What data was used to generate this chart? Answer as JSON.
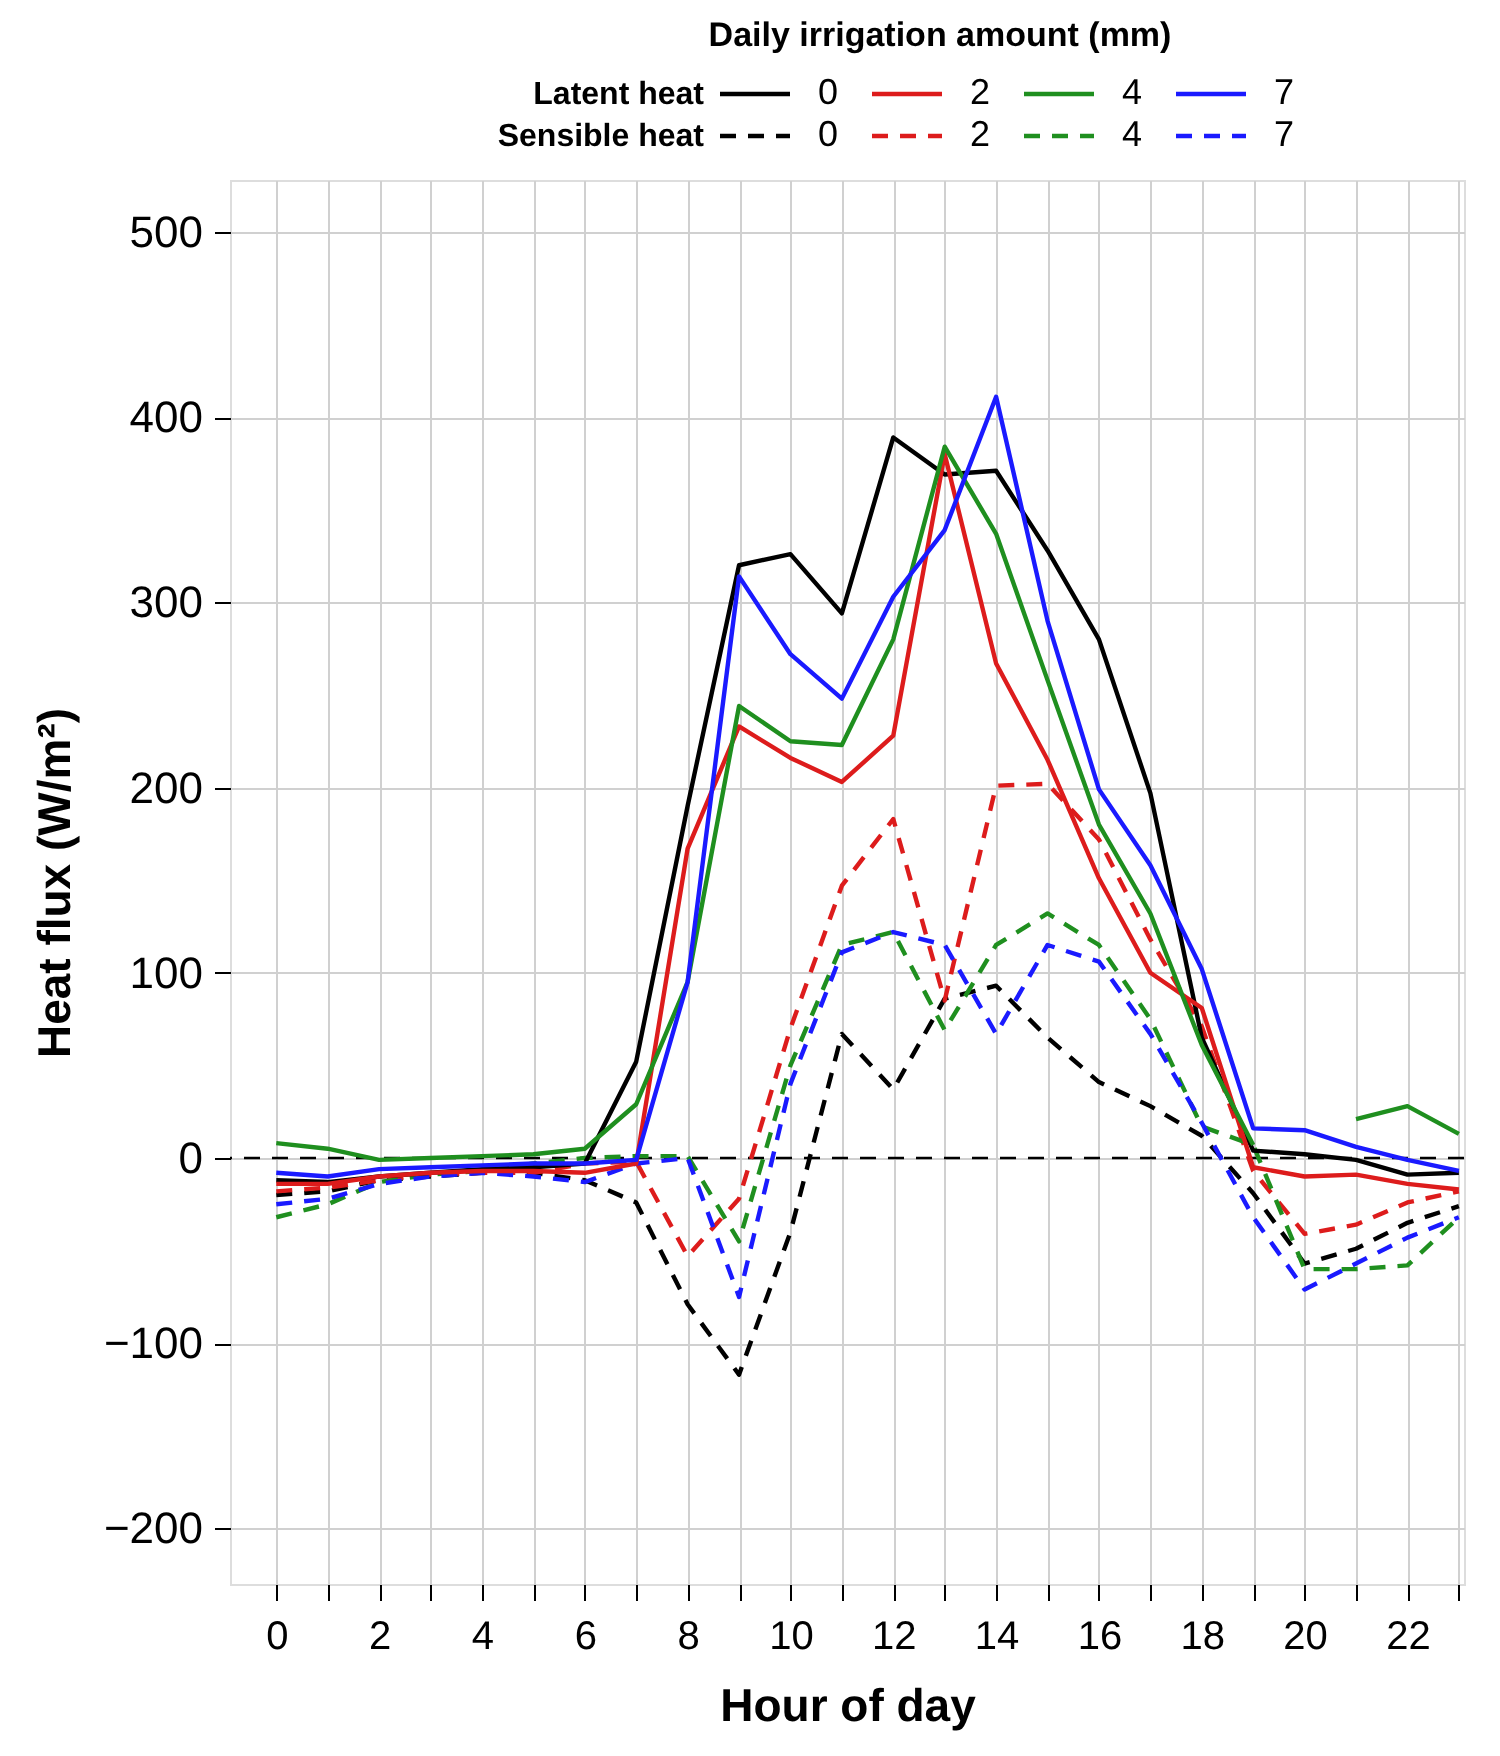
{
  "chart_data": {
    "type": "line",
    "xlabel": "Hour of day",
    "ylabel": "Heat flux (W/m²)",
    "legend_title": "Daily irrigation amount (mm)",
    "annotations": [
      "Latent heat",
      "Sensible heat"
    ],
    "x": [
      0,
      1,
      2,
      3,
      4,
      5,
      6,
      7,
      8,
      9,
      10,
      11,
      12,
      13,
      14,
      15,
      16,
      17,
      18,
      19,
      20,
      21,
      22,
      23
    ],
    "series": [
      {
        "name": "0",
        "color": "#000000",
        "line_style": "dashed",
        "values": [
          -20,
          -18,
          -12,
          -10,
          -8,
          -8,
          -12,
          -24,
          -79,
          -117,
          -40,
          67,
          37,
          86,
          93,
          65,
          41,
          28,
          12,
          -19,
          -57,
          -49,
          -35,
          -26
        ]
      },
      {
        "name": "2",
        "color": "#dd1c1c",
        "line_style": "dashed",
        "values": [
          -18,
          -16,
          -12,
          -9,
          -8,
          -8,
          -3,
          -2,
          -53,
          -22,
          70,
          147,
          183,
          85,
          201,
          202,
          172,
          118,
          71,
          -7,
          -41,
          -36,
          -24,
          -18
        ]
      },
      {
        "name": "4",
        "color": "#1f8f1f",
        "line_style": "dashed",
        "values": [
          -32,
          -25,
          -13,
          -9,
          -7,
          -3,
          0,
          1,
          1,
          -45,
          50,
          115,
          122,
          69,
          115,
          132,
          115,
          75,
          17,
          7,
          -60,
          -60,
          -58,
          -32
        ]
      },
      {
        "name": "7",
        "color": "#1a1aff",
        "line_style": "dashed",
        "values": [
          -25,
          -22,
          -14,
          -10,
          -8,
          -10,
          -13,
          -3,
          0,
          -75,
          40,
          111,
          122,
          115,
          67,
          115,
          106,
          67,
          19,
          -32,
          -71,
          -57,
          -43,
          -32
        ]
      },
      {
        "name": "0",
        "color": "#000000",
        "line_style": "solid",
        "values": [
          -12,
          -13,
          -10,
          -8,
          -6,
          -5,
          -3,
          52,
          190,
          320,
          326,
          294,
          389,
          369,
          371,
          328,
          280,
          197,
          65,
          4,
          2,
          -1,
          -9,
          -8
        ]
      },
      {
        "name": "2",
        "color": "#dd1c1c",
        "line_style": "solid",
        "values": [
          -14,
          -14,
          -10,
          -8,
          -7,
          -7,
          -8,
          -3,
          167,
          233,
          216,
          203,
          228,
          380,
          267,
          215,
          151,
          100,
          81,
          -5,
          -10,
          -9,
          -14,
          -17
        ]
      },
      {
        "name": "4",
        "color": "#1f8f1f",
        "line_style": "solid",
        "values": [
          8,
          5,
          -1,
          0,
          1,
          2,
          5,
          29,
          95,
          244,
          225,
          223,
          280,
          384,
          337,
          258,
          180,
          132,
          61,
          7,
          null,
          21,
          28,
          13
        ]
      },
      {
        "name": "7",
        "color": "#1a1aff",
        "line_style": "solid",
        "values": [
          -8,
          -10,
          -6,
          -5,
          -4,
          -3,
          -3,
          -1,
          95,
          314,
          272,
          248,
          303,
          339,
          411,
          290,
          199,
          158,
          102,
          16,
          15,
          6,
          -1,
          -7
        ]
      }
    ],
    "xlim": [
      -0.9,
      23.1
    ],
    "xticks": [
      0,
      {
        "value": 1,
        "label": null
      },
      2,
      {
        "value": 3,
        "label": null
      },
      4,
      {
        "value": 5,
        "label": null
      },
      6,
      {
        "value": 7,
        "label": null
      },
      8,
      {
        "value": 9,
        "label": null
      },
      10,
      {
        "value": 11,
        "label": null
      },
      12,
      {
        "value": 13,
        "label": null
      },
      14,
      {
        "value": 15,
        "label": null
      },
      16,
      {
        "value": 17,
        "label": null
      },
      18,
      {
        "value": 19,
        "label": null
      },
      20,
      {
        "value": 21,
        "label": null
      },
      22,
      {
        "value": 23,
        "label": null
      }
    ],
    "ylim": [
      -230,
      528
    ],
    "yticks": [
      -200,
      -100,
      0,
      100,
      200,
      300,
      400,
      500
    ],
    "ref_lines": [
      {
        "axis": "y",
        "value": 0,
        "color": "#000000",
        "line_style": "dashed"
      }
    ],
    "grid": true,
    "legend": "top"
  }
}
